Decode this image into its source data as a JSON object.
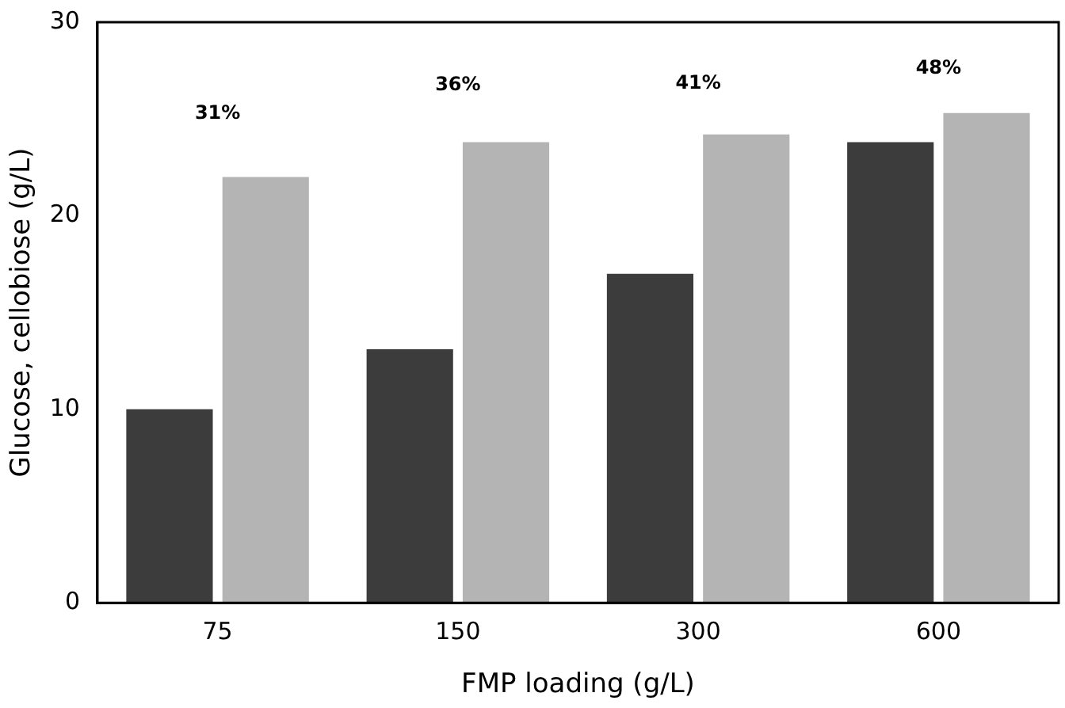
{
  "chart_data": {
    "type": "bar",
    "xlabel": "FMP loading (g/L)",
    "ylabel": "Glucose, cellobiose (g/L)",
    "categories": [
      "75",
      "150",
      "300",
      "600"
    ],
    "series": [
      {
        "color": "#3c3c3c",
        "values": [
          10,
          13.1,
          17,
          23.8
        ]
      },
      {
        "color": "#b4b4b4",
        "values": [
          22,
          23.8,
          24.2,
          25.3
        ]
      }
    ],
    "ylim": [
      0,
      30
    ],
    "yticks": [
      0,
      10,
      20,
      30
    ],
    "grid": false,
    "legend": false,
    "annotations": [
      "31%",
      "36%",
      "41%",
      "48%"
    ]
  }
}
